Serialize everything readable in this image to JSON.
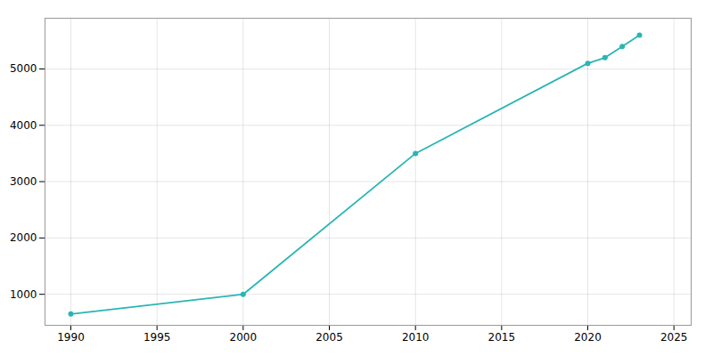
{
  "chart_data": {
    "type": "line",
    "x": [
      1990,
      2000,
      2010,
      2020,
      2021,
      2022,
      2023
    ],
    "values": [
      650,
      1000,
      3500,
      5100,
      5200,
      5400,
      5600
    ],
    "color": "#2ab5b5",
    "marker": "circle",
    "xlim": [
      1988.5,
      2026
    ],
    "ylim": [
      450,
      5900
    ],
    "xticks": [
      1990,
      1995,
      2000,
      2005,
      2010,
      2015,
      2020,
      2025
    ],
    "yticks": [
      1000,
      2000,
      3000,
      4000,
      5000
    ],
    "grid": true
  }
}
